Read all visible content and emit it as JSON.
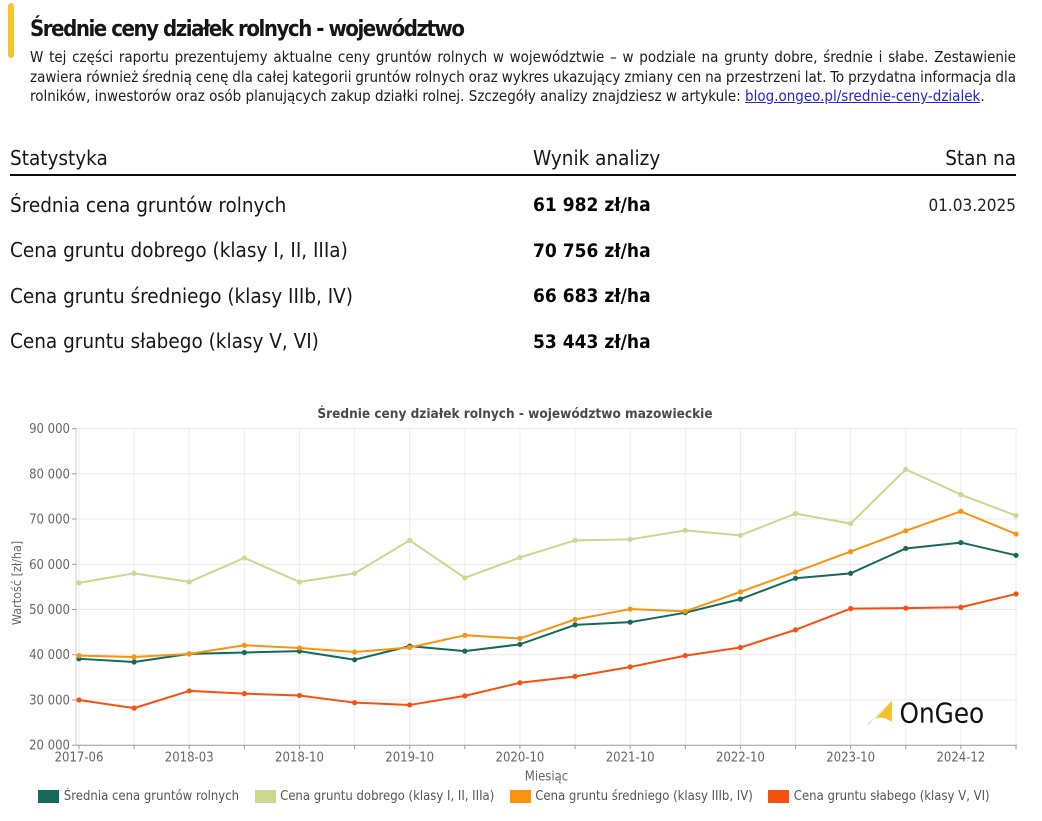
{
  "header": {
    "title": "Średnie ceny działek rolnych - województwo",
    "accent_color": "#f8c32b"
  },
  "intro": {
    "line1": "W tej części raportu prezentujemy aktualne ceny gruntów rolnych w województwie – w podziale na grunty dobre, średnie i słabe. Zestawienie",
    "line2": "zawiera również średnią cenę dla całej kategorii gruntów rolnych oraz wykres ukazujący zmiany cen na przestrzeni lat. To przydatna informacja dla",
    "line3_prefix": "rolników, inwestorów oraz osób planujących zakup działki rolnej. Szczegóły analizy znajdziesz w artykule: ",
    "link_text": "blog.ongeo.pl/srednie-ceny-dzialek",
    "line3_suffix": "."
  },
  "table": {
    "columns": [
      "Statystyka",
      "Wynik analizy",
      "Stan na"
    ],
    "rows": [
      {
        "label": "Średnia cena gruntów rolnych",
        "value": "61 982 zł/ha",
        "date": "01.03.2025"
      },
      {
        "label": "Cena gruntu dobrego (klasy I, II, IIIa)",
        "value": "70 756 zł/ha",
        "date": ""
      },
      {
        "label": "Cena gruntu średniego (klasy IIIb, IV)",
        "value": "66 683 zł/ha",
        "date": ""
      },
      {
        "label": "Cena gruntu słabego (klasy V, VI)",
        "value": "53 443 zł/ha",
        "date": ""
      }
    ]
  },
  "chart_data": {
    "type": "line",
    "title": "Średnie ceny działek rolnych - województwo mazowieckie",
    "xlabel": "Miesiąc",
    "ylabel": "Wartość [zł/ha]",
    "ylim": [
      20000,
      90000
    ],
    "ytick_step": 10000,
    "grid": true,
    "legend_position": "bottom",
    "n_points": 18,
    "label_every": 2,
    "x_tick_labels": [
      "2017-06",
      "2018-03",
      "2018-10",
      "2019-10",
      "2020-10",
      "2021-10",
      "2022-10",
      "2023-10",
      "2024-12"
    ],
    "series": [
      {
        "name": "Średnia cena gruntów rolnych",
        "color": "#156a5b",
        "values": [
          39100,
          38400,
          40200,
          40500,
          40800,
          38900,
          41900,
          40800,
          42300,
          46600,
          47200,
          49300,
          52300,
          56900,
          58000,
          63500,
          64800,
          61982
        ]
      },
      {
        "name": "Cena gruntu dobrego (klasy I, II, IIIa)",
        "color": "#ccd78f",
        "values": [
          55900,
          58000,
          56100,
          61400,
          56100,
          58000,
          65300,
          57000,
          61500,
          65300,
          65500,
          67500,
          66400,
          71200,
          69000,
          81000,
          75400,
          70756
        ]
      },
      {
        "name": "Cena gruntu średniego (klasy IIIb, IV)",
        "color": "#f9940f",
        "values": [
          39800,
          39500,
          40200,
          42100,
          41500,
          40600,
          41600,
          44300,
          43600,
          47800,
          50100,
          49600,
          53900,
          58300,
          62800,
          67400,
          71700,
          66683
        ]
      },
      {
        "name": "Cena gruntu słabego (klasy V, VI)",
        "color": "#f8500f",
        "values": [
          30000,
          28200,
          32000,
          31400,
          31000,
          29400,
          28900,
          30900,
          33800,
          35200,
          37300,
          39800,
          41600,
          45500,
          50200,
          50300,
          50500,
          53443
        ]
      }
    ],
    "watermark": "OnGeo"
  }
}
